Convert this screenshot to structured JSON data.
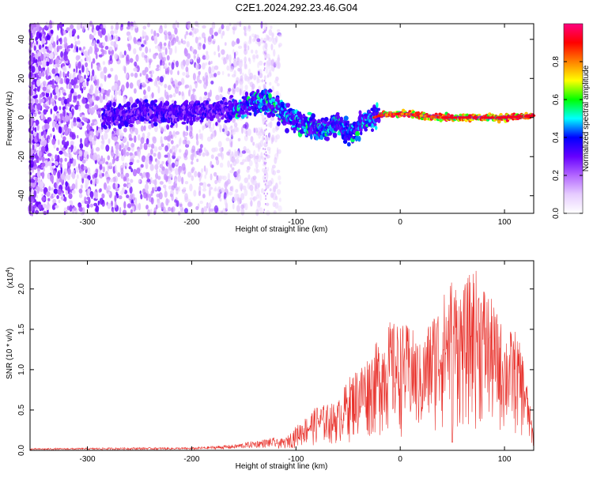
{
  "title": "C2E1.2024.292.23.46.G04",
  "chart_data": [
    {
      "type": "heatmap",
      "xlabel": "Height of straight line (km)",
      "ylabel": "Frequency (Hz)",
      "xlim": [
        -355,
        128
      ],
      "ylim": [
        -49,
        48
      ],
      "xticks": [
        -300,
        -200,
        -100,
        0,
        100
      ],
      "yticks": [
        -40,
        -20,
        0,
        20,
        40
      ],
      "colorbar": {
        "label": "Normalized spectral amplitude",
        "range": [
          0,
          1
        ],
        "ticks": [
          0.0,
          0.2,
          0.4,
          0.6,
          0.8
        ],
        "tick_labels": [
          "0.0",
          "0.2",
          "0.4",
          "0.6",
          "0.8"
        ],
        "colormap": [
          "#ffffff",
          "#e6ccff",
          "#b366ff",
          "#6600ff",
          "#0000ff",
          "#00ffff",
          "#00ff00",
          "#ffff00",
          "#ff8000",
          "#ff0000",
          "#ff0080"
        ]
      },
      "signal_track": [
        {
          "x": -280,
          "y": 1
        },
        {
          "x": -260,
          "y": 2
        },
        {
          "x": -240,
          "y": 3
        },
        {
          "x": -220,
          "y": 2
        },
        {
          "x": -200,
          "y": 3
        },
        {
          "x": -180,
          "y": 4
        },
        {
          "x": -160,
          "y": 4
        },
        {
          "x": -140,
          "y": 8
        },
        {
          "x": -125,
          "y": 8
        },
        {
          "x": -110,
          "y": 1
        },
        {
          "x": -90,
          "y": -4
        },
        {
          "x": -75,
          "y": -6
        },
        {
          "x": -60,
          "y": -3
        },
        {
          "x": -48,
          "y": -8
        },
        {
          "x": -35,
          "y": -2
        },
        {
          "x": -20,
          "y": 1
        },
        {
          "x": 0,
          "y": 2
        },
        {
          "x": 20,
          "y": 1
        },
        {
          "x": 40,
          "y": 0
        },
        {
          "x": 60,
          "y": 0
        },
        {
          "x": 80,
          "y": 0
        },
        {
          "x": 100,
          "y": 0
        },
        {
          "x": 128,
          "y": 1
        }
      ]
    },
    {
      "type": "line",
      "xlabel": "Height of straight line (km)",
      "ylabel": "SNR (10 * v/v)",
      "yscale_label": "(x10",
      "yscale_exp": "4",
      "xlim": [
        -355,
        128
      ],
      "ylim": [
        0,
        2.35
      ],
      "xticks": [
        -300,
        -200,
        -100,
        0,
        100
      ],
      "yticks": [
        0.0,
        0.5,
        1.0,
        1.5,
        2.0
      ],
      "ytick_labels": [
        "0.0",
        "0.5",
        "1.0",
        "1.5",
        "2.0"
      ],
      "color": "#e8302a",
      "envelope": [
        {
          "x": -355,
          "y": 0.02
        },
        {
          "x": -250,
          "y": 0.03
        },
        {
          "x": -200,
          "y": 0.03
        },
        {
          "x": -160,
          "y": 0.06
        },
        {
          "x": -140,
          "y": 0.1
        },
        {
          "x": -110,
          "y": 0.15
        },
        {
          "x": -100,
          "y": 0.3
        },
        {
          "x": -80,
          "y": 0.55
        },
        {
          "x": -60,
          "y": 0.6
        },
        {
          "x": -50,
          "y": 0.9
        },
        {
          "x": -30,
          "y": 1.2
        },
        {
          "x": -10,
          "y": 1.6
        },
        {
          "x": 10,
          "y": 1.55
        },
        {
          "x": 20,
          "y": 1.3
        },
        {
          "x": 30,
          "y": 1.7
        },
        {
          "x": 40,
          "y": 1.9
        },
        {
          "x": 50,
          "y": 2.2
        },
        {
          "x": 60,
          "y": 2.0
        },
        {
          "x": 70,
          "y": 2.3
        },
        {
          "x": 80,
          "y": 2.1
        },
        {
          "x": 90,
          "y": 1.8
        },
        {
          "x": 100,
          "y": 1.5
        },
        {
          "x": 110,
          "y": 1.5
        },
        {
          "x": 118,
          "y": 1.2
        },
        {
          "x": 124,
          "y": 0.6
        },
        {
          "x": 128,
          "y": 0.2
        }
      ]
    }
  ]
}
